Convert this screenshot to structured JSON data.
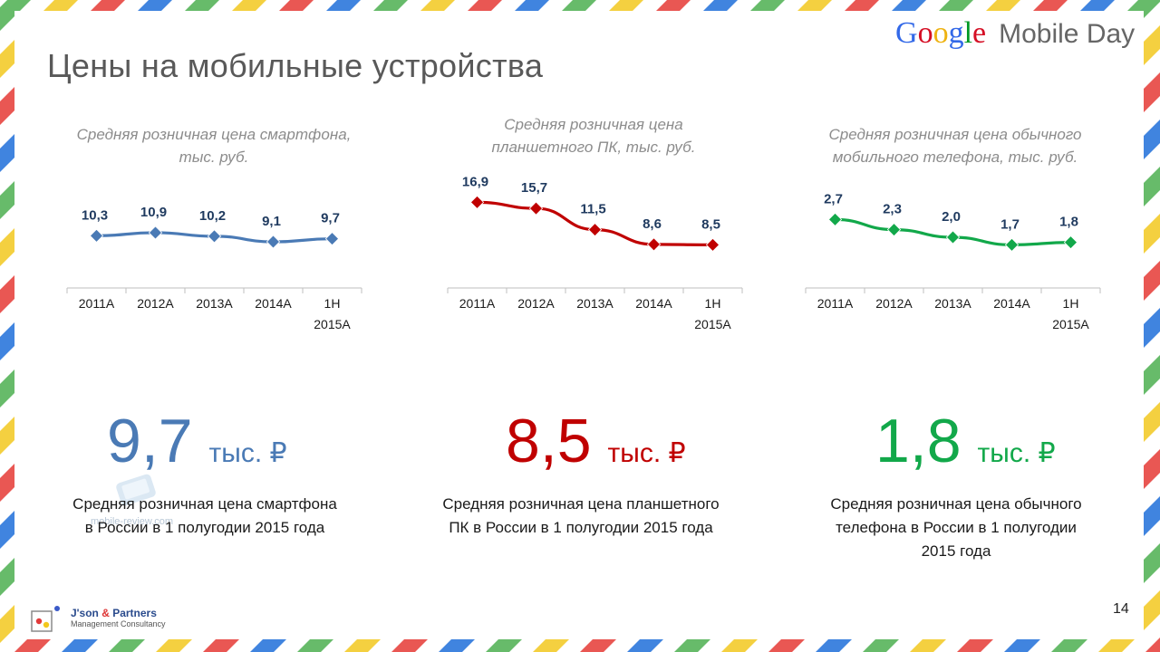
{
  "slide": {
    "title": "Цены на мобильные устройства",
    "brand": {
      "google": "Google",
      "event": "Mobile Day"
    },
    "page_number": "14",
    "watermark": "mobile-review.com",
    "logo": {
      "name_part1": "J'son ",
      "amp": "&",
      "name_part2": " Partners",
      "subtitle": "Management Consultancy"
    }
  },
  "highlights": [
    {
      "value": "9,7",
      "unit": "тыс. ₽",
      "color": "#4a7ab5",
      "caption_line1": "Средняя розничная цена смартфона",
      "caption_line2": "в России в 1 полугодии 2015 года",
      "caption_line3": ""
    },
    {
      "value": "8,5",
      "unit": "тыс. ₽",
      "color": "#c00000",
      "caption_line1": "Средняя розничная цена планшетного",
      "caption_line2": "ПК в России в 1 полугодии 2015 года",
      "caption_line3": ""
    },
    {
      "value": "1,8",
      "unit": "тыс. ₽",
      "color": "#12a84a",
      "caption_line1": "Средняя розничная цена обычного",
      "caption_line2": "телефона в России в 1 полугодии",
      "caption_line3": "2015 года"
    }
  ],
  "chart_data": [
    {
      "type": "line",
      "title_line1": "Средняя розничная цена смартфона,",
      "title_line2": "тыс. руб.",
      "categories": [
        "2011A",
        "2012A",
        "2013A",
        "2014A",
        "1H 2015A"
      ],
      "series": [
        {
          "values": [
            10.3,
            10.9,
            10.2,
            9.1,
            9.7
          ]
        }
      ],
      "data_labels": [
        "10,3",
        "10,9",
        "10,2",
        "9,1",
        "9,7"
      ],
      "color": "#4a7ab5",
      "ylim": [
        0,
        20
      ]
    },
    {
      "type": "line",
      "title_line1": "Средняя розничная цена",
      "title_line2": "планшетного ПК, тыс. руб.",
      "categories": [
        "2011A",
        "2012A",
        "2013A",
        "2014A",
        "1H 2015A"
      ],
      "series": [
        {
          "values": [
            16.9,
            15.7,
            11.5,
            8.6,
            8.5
          ]
        }
      ],
      "data_labels": [
        "16,9",
        "15,7",
        "11,5",
        "8,6",
        "8,5"
      ],
      "color": "#c00000",
      "ylim": [
        0,
        20
      ]
    },
    {
      "type": "line",
      "title_line1": "Средняя розничная цена обычного",
      "title_line2": "мобильного телефона, тыс. руб.",
      "categories": [
        "2011A",
        "2012A",
        "2013A",
        "2014A",
        "1H 2015A"
      ],
      "series": [
        {
          "values": [
            2.7,
            2.3,
            2.0,
            1.7,
            1.8
          ]
        }
      ],
      "data_labels": [
        "2,7",
        "2,3",
        "2,0",
        "1,7",
        "1,8"
      ],
      "color": "#12a84a",
      "ylim": [
        0,
        4
      ]
    }
  ]
}
